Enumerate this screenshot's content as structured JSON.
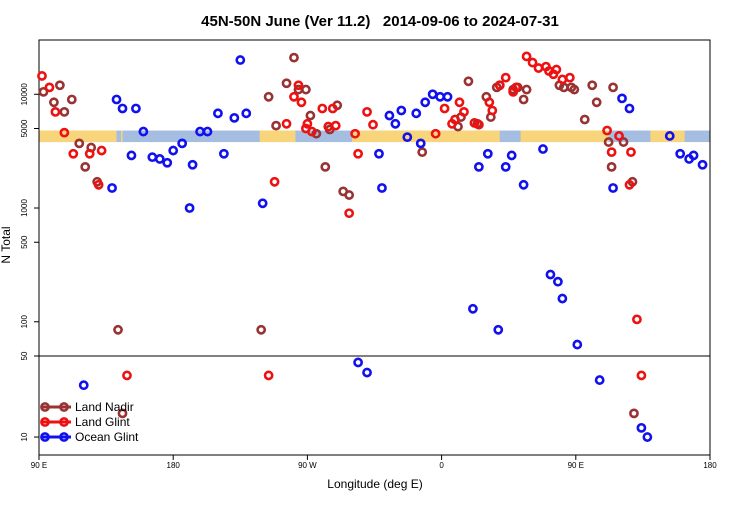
{
  "chart_data": {
    "type": "scatter",
    "title": "45N-50N June (Ver 11.2)   2014-09-06 to 2024-07-31",
    "xlabel": "Longitude (deg E)",
    "ylabel": "N Total",
    "xscale": "linear",
    "yscale": "log (upper panel), log (lower panel)",
    "grid": false,
    "legend_position": "bottom-left",
    "x_ticks": [
      {
        "value": 90,
        "label": "90 E"
      },
      {
        "value": 180,
        "label": "180"
      },
      {
        "value": 270,
        "label": "90 W"
      },
      {
        "value": 360,
        "label": "0"
      },
      {
        "value": 450,
        "label": "90 E"
      },
      {
        "value": 540,
        "label": "180"
      }
    ],
    "xlim": [
      90,
      540
    ],
    "upper_panel": {
      "ylim": [
        50,
        30000
      ],
      "ticks": [
        50,
        100,
        500,
        1000,
        5000,
        10000
      ]
    },
    "lower_panel": {
      "ylim": [
        7,
        50
      ],
      "ticks": [
        10,
        50
      ]
    },
    "land_band": {
      "y_low": 3800,
      "y_high": 4800,
      "land_color": "#f8d57a",
      "ocean_color": "#a4bde0",
      "land_ranges": [
        [
          90,
          142
        ],
        [
          145,
          146
        ],
        [
          238,
          262
        ],
        [
          300,
          399
        ],
        [
          413,
          472
        ],
        [
          500,
          523
        ]
      ]
    },
    "series": [
      {
        "name": "Land Nadir",
        "color": "#993333",
        "points": [
          [
            93,
            10500
          ],
          [
            100,
            8500
          ],
          [
            104,
            12000
          ],
          [
            107,
            7000
          ],
          [
            112,
            9000
          ],
          [
            117,
            3700
          ],
          [
            121,
            2300
          ],
          [
            125,
            3400
          ],
          [
            129,
            1700
          ],
          [
            143,
            85
          ],
          [
            146,
            16
          ],
          [
            239,
            85
          ],
          [
            244,
            9500
          ],
          [
            249,
            5300
          ],
          [
            256,
            12500
          ],
          [
            261,
            21000
          ],
          [
            264,
            11000
          ],
          [
            269,
            11000
          ],
          [
            272,
            6500
          ],
          [
            276,
            4500
          ],
          [
            282,
            2300
          ],
          [
            285,
            4900
          ],
          [
            290,
            8000
          ],
          [
            294,
            1400
          ],
          [
            298,
            1300
          ],
          [
            347,
            3100
          ],
          [
            371,
            5200
          ],
          [
            373,
            6300
          ],
          [
            378,
            13000
          ],
          [
            384,
            5500
          ],
          [
            390,
            9500
          ],
          [
            393,
            6300
          ],
          [
            397,
            11500
          ],
          [
            399,
            12000
          ],
          [
            408,
            11000
          ],
          [
            411,
            11500
          ],
          [
            415,
            9000
          ],
          [
            417,
            11000
          ],
          [
            439,
            12000
          ],
          [
            442,
            11500
          ],
          [
            447,
            11500
          ],
          [
            449,
            11000
          ],
          [
            456,
            6000
          ],
          [
            461,
            12000
          ],
          [
            464,
            8500
          ],
          [
            472,
            3800
          ],
          [
            474,
            2300
          ],
          [
            475,
            11500
          ],
          [
            482,
            3800
          ],
          [
            488,
            1700
          ],
          [
            489,
            16
          ]
        ]
      },
      {
        "name": "Land Glint",
        "color": "#ee1111",
        "points": [
          [
            92,
            14500
          ],
          [
            97,
            11500
          ],
          [
            101,
            7000
          ],
          [
            107,
            4600
          ],
          [
            113,
            3000
          ],
          [
            124,
            3000
          ],
          [
            130,
            1600
          ],
          [
            132,
            3200
          ],
          [
            149,
            34
          ],
          [
            244,
            34
          ],
          [
            248,
            1700
          ],
          [
            256,
            5500
          ],
          [
            261,
            9500
          ],
          [
            264,
            12000
          ],
          [
            266,
            8500
          ],
          [
            269,
            5000
          ],
          [
            270,
            5500
          ],
          [
            273,
            4700
          ],
          [
            280,
            7500
          ],
          [
            284,
            5200
          ],
          [
            287,
            7500
          ],
          [
            289,
            5300
          ],
          [
            298,
            900
          ],
          [
            302,
            4500
          ],
          [
            304,
            3000
          ],
          [
            310,
            7000
          ],
          [
            314,
            5400
          ],
          [
            356,
            4500
          ],
          [
            362,
            7500
          ],
          [
            367,
            5500
          ],
          [
            369,
            6000
          ],
          [
            372,
            8500
          ],
          [
            375,
            7000
          ],
          [
            382,
            5600
          ],
          [
            385,
            5400
          ],
          [
            392,
            8500
          ],
          [
            394,
            7200
          ],
          [
            399,
            12000
          ],
          [
            403,
            14000
          ],
          [
            408,
            10500
          ],
          [
            410,
            11500
          ],
          [
            417,
            21500
          ],
          [
            421,
            19000
          ],
          [
            425,
            17000
          ],
          [
            430,
            17500
          ],
          [
            432,
            16000
          ],
          [
            435,
            15000
          ],
          [
            437,
            16500
          ],
          [
            441,
            13500
          ],
          [
            446,
            14000
          ],
          [
            471,
            4800
          ],
          [
            474,
            3100
          ],
          [
            479,
            4300
          ],
          [
            486,
            1600
          ],
          [
            487,
            3100
          ],
          [
            491,
            105
          ],
          [
            494,
            34
          ]
        ]
      },
      {
        "name": "Ocean Glint",
        "color": "#1111ee",
        "points": [
          [
            120,
            28
          ],
          [
            139,
            1500
          ],
          [
            142,
            9000
          ],
          [
            146,
            7500
          ],
          [
            152,
            2900
          ],
          [
            155,
            7500
          ],
          [
            160,
            4700
          ],
          [
            166,
            2800
          ],
          [
            171,
            2700
          ],
          [
            176,
            2500
          ],
          [
            180,
            3200
          ],
          [
            186,
            3700
          ],
          [
            191,
            1000
          ],
          [
            193,
            2400
          ],
          [
            198,
            4700
          ],
          [
            203,
            4700
          ],
          [
            210,
            6800
          ],
          [
            214,
            3000
          ],
          [
            221,
            6200
          ],
          [
            225,
            20000
          ],
          [
            229,
            6800
          ],
          [
            240,
            1100
          ],
          [
            304,
            44
          ],
          [
            310,
            36
          ],
          [
            318,
            3000
          ],
          [
            320,
            1500
          ],
          [
            325,
            6500
          ],
          [
            329,
            5500
          ],
          [
            333,
            7200
          ],
          [
            337,
            4200
          ],
          [
            343,
            6800
          ],
          [
            346,
            3700
          ],
          [
            349,
            8500
          ],
          [
            354,
            10000
          ],
          [
            359,
            9500
          ],
          [
            364,
            9500
          ],
          [
            381,
            130
          ],
          [
            385,
            2300
          ],
          [
            391,
            3000
          ],
          [
            398,
            85
          ],
          [
            403,
            2300
          ],
          [
            407,
            2900
          ],
          [
            415,
            1600
          ],
          [
            428,
            3300
          ],
          [
            433,
            260
          ],
          [
            438,
            225
          ],
          [
            441,
            160
          ],
          [
            451,
            63
          ],
          [
            466,
            31
          ],
          [
            475,
            1500
          ],
          [
            481,
            9200
          ],
          [
            486,
            7500
          ],
          [
            494,
            12
          ],
          [
            498,
            10
          ],
          [
            513,
            4300
          ],
          [
            520,
            3000
          ],
          [
            526,
            2700
          ],
          [
            529,
            2900
          ],
          [
            535,
            2400
          ]
        ]
      }
    ],
    "annotations": []
  }
}
